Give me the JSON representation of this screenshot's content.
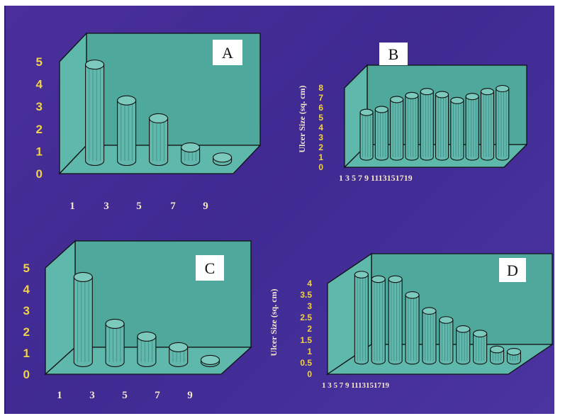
{
  "chart_data": [
    {
      "panel": "A",
      "type": "bar",
      "categories": [
        "1",
        "3",
        "5",
        "7",
        "9"
      ],
      "values": [
        4.3,
        2.7,
        1.9,
        0.6,
        0.15
      ],
      "ylim": [
        0,
        5
      ],
      "yticks": [
        "0",
        "1",
        "2",
        "3",
        "4",
        "5"
      ],
      "ylabel": ""
    },
    {
      "panel": "B",
      "type": "bar",
      "categories": [
        "1",
        "3",
        "5",
        "7",
        "9",
        "11",
        "13",
        "15",
        "17",
        "19"
      ],
      "xtick_text": "1 3 5 7 9 1113151719",
      "values": [
        4.5,
        4.8,
        5.8,
        6.2,
        6.6,
        6.3,
        5.7,
        6.1,
        6.6,
        6.9
      ],
      "ylim": [
        0,
        8
      ],
      "yticks": [
        "0",
        "1",
        "2",
        "3",
        "4",
        "5",
        "6",
        "7",
        "8"
      ],
      "ylabel": "Ulcer Size (sq. cm)"
    },
    {
      "panel": "C",
      "type": "bar",
      "categories": [
        "1",
        "3",
        "5",
        "7",
        "9"
      ],
      "values": [
        4.0,
        1.8,
        1.2,
        0.7,
        0.1
      ],
      "ylim": [
        0,
        5
      ],
      "yticks": [
        "0",
        "1",
        "2",
        "3",
        "4",
        "5"
      ],
      "ylabel": ""
    },
    {
      "panel": "D",
      "type": "bar",
      "categories": [
        "1",
        "3",
        "5",
        "7",
        "9",
        "11",
        "13",
        "15",
        "17",
        "19"
      ],
      "xtick_text": "1 3 5 7 9 1113151719",
      "values": [
        3.8,
        3.6,
        3.6,
        2.9,
        2.2,
        1.8,
        1.4,
        1.2,
        0.5,
        0.4
      ],
      "ylim": [
        0,
        4
      ],
      "yticks": [
        "0",
        "0.5",
        "1",
        "1.5",
        "2",
        "2.5",
        "3",
        "3.5",
        "4"
      ],
      "ylabel": "Ulcer Size (sq. cm)"
    }
  ],
  "colors": {
    "background": "#43309a",
    "box": "#4fa89c",
    "wall_light": "#5fb8ac",
    "bar": "#62b8ac",
    "bar_dark": "#2e7a70",
    "y_tick": "#f0d24a",
    "x_tick": "#f4e7c8"
  }
}
